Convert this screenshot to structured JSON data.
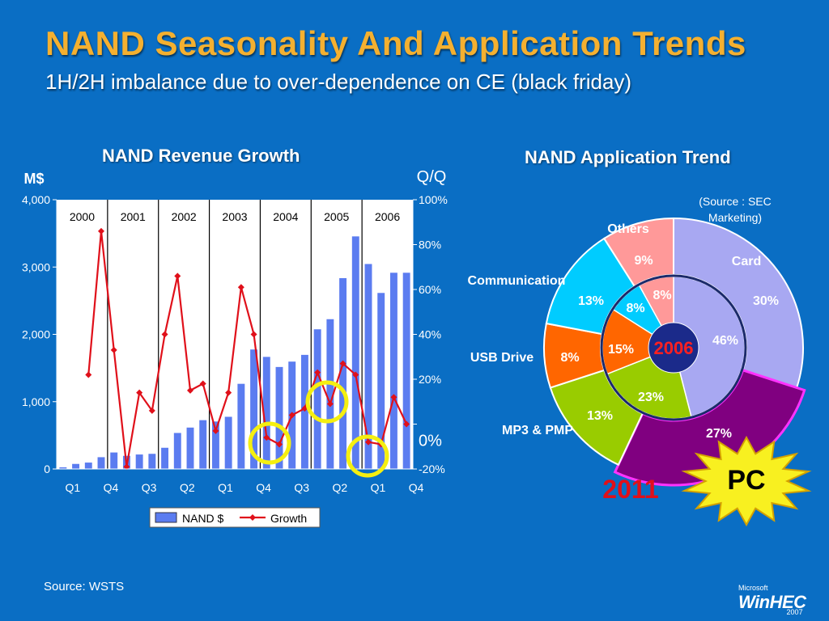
{
  "slide": {
    "title": "NAND Seasonality And Application Trends",
    "subtitle": "1H/2H imbalance due to over-dependence on CE (black friday)",
    "source": "Source:  WSTS",
    "logo": {
      "ms": "Microsoft",
      "name": "WinHEC",
      "year": "2007"
    }
  },
  "colors": {
    "background": "#0a6ec4",
    "title": "#f4b030",
    "bar": "#5b7cf0",
    "growth_line": "#e0101a",
    "highlight_circle": "#f5ef10"
  },
  "chart_data": [
    {
      "type": "bar+line",
      "title": "NAND Revenue Growth",
      "y_left_label": "M$",
      "y_right_label": "Q/Q",
      "y_left_ticks": [
        "4,000",
        "3,000",
        "2,000",
        "1,000",
        "0"
      ],
      "y_right_ticks": [
        "100%",
        "80%",
        "60%",
        "40%",
        "20%",
        "0%",
        "-20%"
      ],
      "ylim_left": [
        0,
        4000
      ],
      "ylim_right": [
        -20,
        100
      ],
      "x_tick_labels": [
        "Q1",
        "Q4",
        "Q3",
        "Q2",
        "Q1",
        "Q4",
        "Q3",
        "Q2",
        "Q1",
        "Q4"
      ],
      "years": [
        "2000",
        "2001",
        "2002",
        "2003",
        "2004",
        "2005",
        "2006"
      ],
      "legend": [
        "NAND $",
        "Growth"
      ],
      "quarters": 28,
      "series": [
        {
          "name": "NAND $",
          "kind": "bar",
          "values": [
            30,
            80,
            100,
            180,
            250,
            200,
            220,
            230,
            320,
            540,
            620,
            730,
            710,
            780,
            1270,
            1780,
            1670,
            1520,
            1600,
            1700,
            2080,
            2230,
            2840,
            3460,
            3050,
            2620,
            2920,
            2920
          ]
        },
        {
          "name": "Growth",
          "kind": "line",
          "values": [
            null,
            null,
            22,
            86,
            33,
            -19,
            14,
            6,
            40,
            66,
            15,
            18,
            -3,
            14,
            61,
            40,
            -6,
            -9,
            4,
            7,
            23,
            9,
            27,
            22,
            -8,
            -9,
            12,
            0
          ]
        }
      ]
    },
    {
      "type": "donut",
      "title": "NAND Application Trend",
      "note": "(Source : SEC Marketing)",
      "center_label": "2006",
      "outer_label": "2011",
      "pc_label": "PC",
      "categories": [
        "Card",
        "PC",
        "MP3 & PMP",
        "USB Drive",
        "Communication",
        "Others"
      ],
      "series": [
        {
          "name": "2006",
          "values": [
            46,
            0,
            23,
            15,
            8,
            8
          ],
          "labels": [
            "46%",
            "",
            "23%",
            "15%",
            "8%",
            "8%"
          ]
        },
        {
          "name": "2011",
          "values": [
            30,
            27,
            13,
            8,
            13,
            9
          ],
          "labels": [
            "30%",
            "27%",
            "13%",
            "8%",
            "13%",
            "9%"
          ]
        }
      ],
      "slice_colors": [
        "#a8a8f2",
        "#800080",
        "#99cc00",
        "#ff6600",
        "#00ccff",
        "#ff9999"
      ]
    }
  ]
}
